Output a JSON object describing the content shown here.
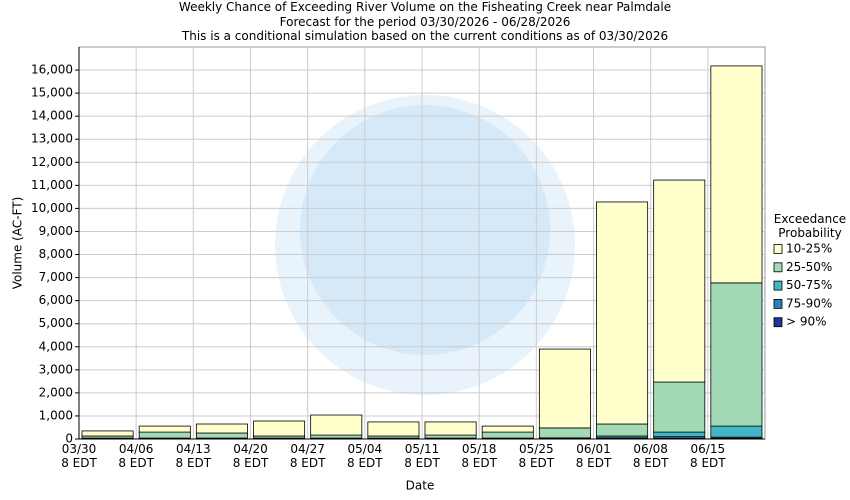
{
  "chart_data": {
    "type": "stacked_bar",
    "title": "Weekly Chance of Exceeding River Volume on the Fisheating Creek near Palmdale\nForecast for the period 03/30/2026 - 06/28/2026\nThis is a conditional simulation based on the current conditions as of 03/30/2026",
    "x_label": "Date",
    "y_label": "Volume (AC-FT)",
    "legend_title": "Exceedance\nProbability",
    "categories": [
      "03/30\n8 EDT",
      "04/06\n8 EDT",
      "04/13\n8 EDT",
      "04/20\n8 EDT",
      "04/27\n8 EDT",
      "05/04\n8 EDT",
      "05/11\n8 EDT",
      "05/18\n8 EDT",
      "05/25\n8 EDT",
      "06/01\n8 EDT",
      "06/08\n8 EDT",
      "06/15\n8 EDT"
    ],
    "series": [
      {
        "name": "> 90%",
        "color": "#253494",
        "values": [
          10,
          10,
          10,
          10,
          10,
          10,
          10,
          10,
          10,
          20,
          30,
          30
        ]
      },
      {
        "name": "75-90%",
        "color": "#2c7fb8",
        "values": [
          10,
          10,
          10,
          10,
          10,
          10,
          10,
          10,
          10,
          30,
          70,
          50
        ]
      },
      {
        "name": "50-75%",
        "color": "#41b6c4",
        "values": [
          20,
          20,
          20,
          20,
          20,
          20,
          20,
          20,
          30,
          80,
          200,
          480
        ]
      },
      {
        "name": "25-50%",
        "color": "#a1dab4",
        "values": [
          90,
          260,
          220,
          90,
          130,
          90,
          130,
          260,
          430,
          520,
          2170,
          6210
        ]
      },
      {
        "name": "10-25%",
        "color": "#ffffcc",
        "values": [
          220,
          260,
          390,
          650,
          870,
          610,
          570,
          260,
          3420,
          9630,
          8760,
          9410
        ]
      }
    ],
    "ylim": [
      0,
      17000
    ],
    "yticks": [
      0,
      {
        "value": 1000,
        "label": "1,000"
      },
      {
        "value": 2000,
        "label": "2,000"
      },
      {
        "value": 3000,
        "label": "3,000"
      },
      {
        "value": 4000,
        "label": "4,000"
      },
      {
        "value": 5000,
        "label": "5,000"
      },
      {
        "value": 6000,
        "label": "6,000"
      },
      {
        "value": 7000,
        "label": "7,000"
      },
      {
        "value": 8000,
        "label": "8,000"
      },
      {
        "value": 9000,
        "label": "9,000"
      },
      {
        "value": 10000,
        "label": "10,000"
      },
      {
        "value": 11000,
        "label": "11,000"
      },
      {
        "value": 12000,
        "label": "12,000"
      },
      {
        "value": 13000,
        "label": "13,000"
      },
      {
        "value": 14000,
        "label": "14,000"
      },
      {
        "value": 15000,
        "label": "15,000"
      },
      {
        "value": 16000,
        "label": "16,000"
      }
    ],
    "grid": true
  }
}
